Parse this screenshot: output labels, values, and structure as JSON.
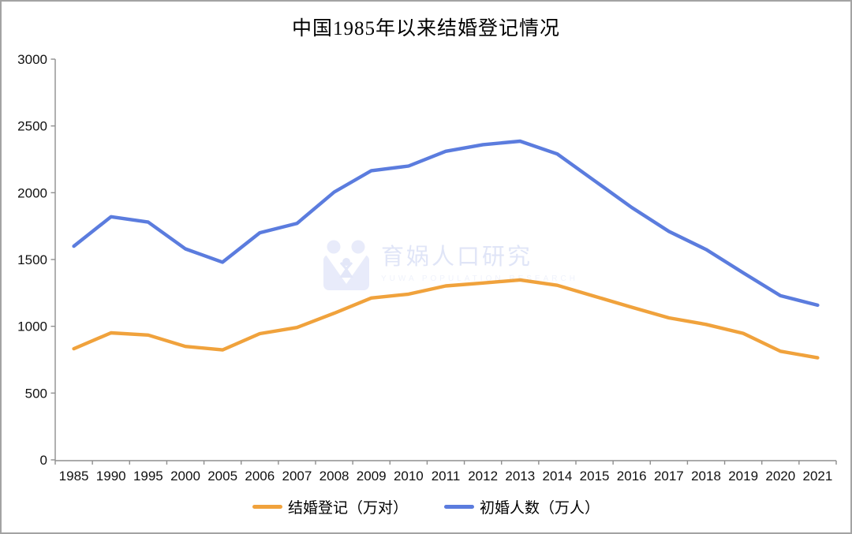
{
  "title": "中国1985年以来结婚登记情况",
  "watermark": {
    "logo": "yuwa-family-logo",
    "text": "育娲人口研究",
    "subtext": "YUWA POPULATION RESEARCH",
    "accent_color": "#657BD8"
  },
  "chart_data": {
    "type": "line",
    "title": "中国1985年以来结婚登记情况",
    "categories": [
      "1985",
      "1990",
      "1995",
      "2000",
      "2005",
      "2006",
      "2007",
      "2008",
      "2009",
      "2010",
      "2011",
      "2012",
      "2013",
      "2014",
      "2015",
      "2016",
      "2017",
      "2018",
      "2019",
      "2020",
      "2021"
    ],
    "series": [
      {
        "name": "结婚登记（万对）",
        "color": "#F0A23C",
        "values": [
          832,
          951,
          934,
          849,
          823,
          945,
          991,
          1098,
          1212,
          1241,
          1302,
          1324,
          1347,
          1307,
          1225,
          1143,
          1063,
          1014,
          947,
          813,
          764
        ]
      },
      {
        "name": "初婚人数（万人）",
        "color": "#5B7CDE",
        "values": [
          1600,
          1820,
          1780,
          1580,
          1480,
          1700,
          1770,
          2005,
          2165,
          2200,
          2310,
          2360,
          2386,
          2290,
          2090,
          1890,
          1710,
          1575,
          1400,
          1229,
          1158
        ]
      }
    ],
    "ylim": [
      0,
      3000
    ],
    "y_ticks": [
      0,
      500,
      1000,
      1500,
      2000,
      2500,
      3000
    ],
    "grid": false,
    "legend_position": "bottom",
    "axis_color": "#8f8f8f"
  }
}
